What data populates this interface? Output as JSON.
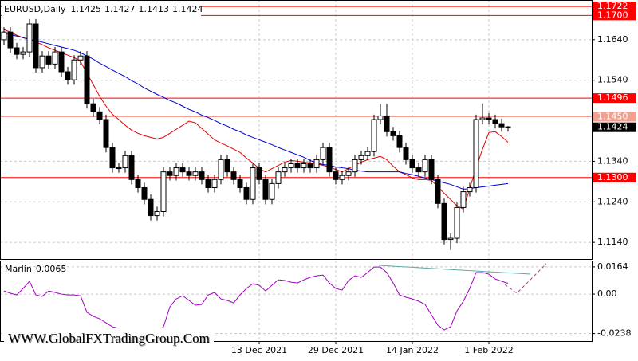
{
  "watermark": "WWW.GlobalFXTradingGroup.Com",
  "chart_data": [
    {
      "type": "candlestick",
      "title": "EURUSD,Daily",
      "categories": [
        null,
        null,
        null,
        null,
        null,
        null,
        null,
        null,
        null,
        null,
        null,
        null,
        null,
        null,
        null,
        null,
        null,
        null,
        null,
        null,
        null,
        null,
        null,
        null,
        null,
        null,
        null,
        null,
        null,
        null,
        null,
        null,
        null,
        null,
        null,
        null,
        null,
        null,
        null,
        null,
        "13 Dec 2021",
        null,
        null,
        null,
        null,
        null,
        null,
        null,
        null,
        null,
        null,
        null,
        "29 Dec 2021",
        null,
        null,
        null,
        null,
        null,
        null,
        null,
        null,
        null,
        null,
        null,
        "14 Jan 2022",
        null,
        null,
        null,
        null,
        null,
        null,
        null,
        null,
        null,
        null,
        null,
        "1 Feb 2022",
        null,
        null,
        null
      ],
      "open": [
        1.164,
        1.1659,
        1.162,
        1.1604,
        1.161,
        1.1679,
        1.1571,
        1.16,
        1.158,
        1.161,
        1.1561,
        1.1541,
        1.159,
        1.16,
        1.1482,
        1.1462,
        1.1443,
        1.1374,
        1.1324,
        1.1324,
        1.1354,
        1.1295,
        1.1275,
        1.1246,
        1.1206,
        1.1216,
        1.1314,
        1.1305,
        1.1324,
        1.1314,
        1.1305,
        1.1314,
        1.1295,
        1.1275,
        1.1295,
        1.1344,
        1.1314,
        1.1295,
        1.1275,
        1.1246,
        1.1324,
        1.1295,
        1.1246,
        1.1285,
        1.1314,
        1.1324,
        1.1334,
        1.1324,
        1.1334,
        1.1324,
        1.1344,
        1.1374,
        1.1314,
        1.1295,
        1.1305,
        1.1314,
        1.1344,
        1.1354,
        1.1364,
        1.1443,
        1.1452,
        1.1413,
        1.1403,
        1.1374,
        1.1344,
        1.1324,
        1.1314,
        1.1344,
        1.1295,
        1.1236,
        1.1147,
        1.115,
        1.1226,
        1.1265,
        1.1275,
        1.1443,
        1.1447,
        1.1443,
        1.1433,
        1.1425
      ],
      "high": [
        1.1671,
        1.1671,
        1.1632,
        1.1622,
        1.1691,
        1.1691,
        1.1612,
        1.1612,
        1.1622,
        1.1622,
        1.1573,
        1.1602,
        1.1612,
        1.1612,
        1.1494,
        1.1474,
        1.1455,
        1.1386,
        1.1336,
        1.1366,
        1.1366,
        1.1307,
        1.1287,
        1.1258,
        1.1228,
        1.1326,
        1.1326,
        1.1336,
        1.1336,
        1.1326,
        1.1326,
        1.1326,
        1.1307,
        1.1307,
        1.1356,
        1.1356,
        1.1326,
        1.1307,
        1.1287,
        1.1336,
        1.1336,
        1.1307,
        1.1297,
        1.1326,
        1.1336,
        1.1346,
        1.1346,
        1.1346,
        1.1346,
        1.1356,
        1.1386,
        1.1386,
        1.1326,
        1.1317,
        1.1326,
        1.1356,
        1.1366,
        1.1376,
        1.1455,
        1.1482,
        1.1482,
        1.1425,
        1.1415,
        1.1386,
        1.1356,
        1.1336,
        1.1356,
        1.1356,
        1.1307,
        1.1248,
        1.1162,
        1.1238,
        1.1277,
        1.1287,
        1.1455,
        1.1483,
        1.1459,
        1.1455,
        1.1445,
        1.1427
      ],
      "low": [
        1.1628,
        1.1608,
        1.1592,
        1.1592,
        1.1598,
        1.1559,
        1.1559,
        1.1568,
        1.1568,
        1.1549,
        1.1529,
        1.1529,
        1.1578,
        1.147,
        1.145,
        1.1431,
        1.1362,
        1.1312,
        1.1312,
        1.1312,
        1.1283,
        1.1263,
        1.1234,
        1.1194,
        1.1194,
        1.1204,
        1.1293,
        1.1293,
        1.1302,
        1.1293,
        1.1293,
        1.1283,
        1.1263,
        1.1263,
        1.1283,
        1.1302,
        1.1283,
        1.1263,
        1.1234,
        1.1234,
        1.1283,
        1.1234,
        1.1234,
        1.1273,
        1.1302,
        1.1312,
        1.1312,
        1.1312,
        1.1312,
        1.1312,
        1.1332,
        1.1302,
        1.1283,
        1.1283,
        1.1293,
        1.1302,
        1.1332,
        1.1342,
        1.1352,
        1.1431,
        1.1401,
        1.1391,
        1.1362,
        1.1332,
        1.1312,
        1.1302,
        1.1302,
        1.1283,
        1.1224,
        1.1135,
        1.1121,
        1.1138,
        1.1214,
        1.1253,
        1.1263,
        1.1431,
        1.1431,
        1.1421,
        1.1413,
        1.1413
      ],
      "close": [
        1.1659,
        1.162,
        1.1604,
        1.161,
        1.1679,
        1.1571,
        1.16,
        1.158,
        1.161,
        1.1561,
        1.1541,
        1.159,
        1.16,
        1.1482,
        1.1462,
        1.1443,
        1.1374,
        1.1324,
        1.1324,
        1.1354,
        1.1295,
        1.1275,
        1.1246,
        1.1206,
        1.1216,
        1.1314,
        1.1305,
        1.1324,
        1.1314,
        1.1305,
        1.1314,
        1.1295,
        1.1275,
        1.1295,
        1.1344,
        1.1314,
        1.1295,
        1.1275,
        1.1246,
        1.1324,
        1.1295,
        1.1246,
        1.1285,
        1.1314,
        1.1324,
        1.1334,
        1.1324,
        1.1334,
        1.1324,
        1.1344,
        1.1374,
        1.1314,
        1.1295,
        1.1305,
        1.1314,
        1.1344,
        1.1354,
        1.1364,
        1.1443,
        1.1452,
        1.1413,
        1.1403,
        1.1374,
        1.1344,
        1.1324,
        1.1314,
        1.1344,
        1.1295,
        1.1236,
        1.1147,
        1.115,
        1.1226,
        1.1265,
        1.1275,
        1.1443,
        1.1447,
        1.1443,
        1.1433,
        1.1425,
        1.1424
      ],
      "up_color": "#ffffff",
      "down_color": "#000000",
      "outline_color": "#000000",
      "lines": [
        {
          "color": "#e00000",
          "values": [
            1.1665,
            1.1659,
            1.1651,
            1.1645,
            1.164,
            1.1634,
            1.1628,
            1.162,
            1.1614,
            1.1608,
            1.1602,
            1.1596,
            1.1586,
            1.1557,
            1.1529,
            1.15,
            1.1476,
            1.1456,
            1.1443,
            1.1429,
            1.1417,
            1.1409,
            1.1403,
            1.1399,
            1.1395,
            1.1399,
            1.1409,
            1.1419,
            1.1429,
            1.1439,
            1.1435,
            1.1421,
            1.1407,
            1.1393,
            1.1385,
            1.1378,
            1.137,
            1.1362,
            1.1348,
            1.1336,
            1.1322,
            1.1314,
            1.1322,
            1.133,
            1.1338,
            1.1342,
            1.134,
            1.1338,
            1.1336,
            1.1334,
            1.133,
            1.1326,
            1.132,
            1.1314,
            1.1322,
            1.133,
            1.1338,
            1.1344,
            1.1348,
            1.1352,
            1.1344,
            1.1328,
            1.1314,
            1.1307,
            1.1299,
            1.1295,
            1.1295,
            1.1293,
            1.1277,
            1.1261,
            1.1246,
            1.123,
            1.1222,
            1.1273,
            1.1324,
            1.137,
            1.1411,
            1.1413,
            1.1401,
            1.1387
          ]
        },
        {
          "color": "#0000d0",
          "values": [
            1.1657,
            1.1653,
            1.1649,
            1.1645,
            1.1641,
            1.1638,
            1.1634,
            1.163,
            1.1626,
            1.1622,
            1.1618,
            1.1614,
            1.1608,
            1.16,
            1.1592,
            1.1582,
            1.1574,
            1.1565,
            1.1557,
            1.1549,
            1.1539,
            1.1531,
            1.1521,
            1.1513,
            1.1505,
            1.1498,
            1.149,
            1.1484,
            1.1476,
            1.1468,
            1.1462,
            1.1454,
            1.1448,
            1.1441,
            1.1433,
            1.1427,
            1.1419,
            1.1413,
            1.1405,
            1.1399,
            1.1393,
            1.1387,
            1.1381,
            1.1374,
            1.1368,
            1.1362,
            1.1356,
            1.135,
            1.1342,
            1.1336,
            1.1332,
            1.133,
            1.1326,
            1.1324,
            1.1322,
            1.1318,
            1.1316,
            1.1314,
            1.1314,
            1.1314,
            1.1314,
            1.1314,
            1.1314,
            1.131,
            1.1307,
            1.1303,
            1.1299,
            1.1295,
            1.1291,
            1.1287,
            1.1283,
            1.1277,
            1.1271,
            1.1273,
            1.1275,
            1.1277,
            1.1279,
            1.1281,
            1.1283,
            1.1285
          ]
        }
      ],
      "levels": [
        {
          "value": 1.1722,
          "color": "#ff0000"
        },
        {
          "value": 1.17,
          "label": "1.1700",
          "color": "#ff0000"
        },
        {
          "value": 1.1496,
          "color": "#ff0000"
        },
        {
          "value": 1.145,
          "label": "1.1450",
          "color": "#f4a090"
        },
        {
          "value": 1.13,
          "label": "1.1300",
          "color": "#ff0000"
        }
      ],
      "price_label_color": "#000000",
      "ylim": [
        1.1099,
        1.1738
      ],
      "yticks": [
        {
          "value": 1.164,
          "label": "1.1640"
        },
        {
          "value": 1.154,
          "label": "1.1540"
        },
        {
          "value": 1.134,
          "label": "1.1340"
        },
        {
          "value": 1.124,
          "label": "1.1240"
        },
        {
          "value": 1.114,
          "label": "1.1140"
        }
      ],
      "grid": true
    },
    {
      "type": "line",
      "title": "Marlin",
      "color": "#a000c0",
      "values": [
        0.0019,
        0.0005,
        -0.0005,
        0.0034,
        0.0077,
        -0.0005,
        -0.0014,
        0.0019,
        0.001,
        0,
        -0.0005,
        -0.0005,
        -0.001,
        -0.011,
        -0.0134,
        -0.0149,
        -0.0173,
        -0.0197,
        -0.0206,
        -0.0216,
        -0.0226,
        -0.023,
        -0.0235,
        -0.0245,
        -0.0226,
        -0.0197,
        -0.0077,
        -0.0029,
        -0.001,
        -0.0038,
        -0.0067,
        -0.0062,
        -0.0005,
        0.001,
        -0.0029,
        -0.0038,
        -0.0053,
        -0.0005,
        0.0034,
        0.0062,
        0.0053,
        0.0019,
        0.0053,
        0.0086,
        0.0082,
        0.0072,
        0.0067,
        0.0086,
        0.0101,
        0.011,
        0.0115,
        0.0067,
        0.0034,
        0.0024,
        0.0082,
        0.011,
        0.0101,
        0.013,
        0.0163,
        0.0163,
        0.013,
        0.0067,
        -0.0005,
        -0.0019,
        -0.0029,
        -0.0043,
        -0.0062,
        -0.0125,
        -0.0187,
        -0.0216,
        -0.0197,
        -0.0101,
        -0.0043,
        0.0034,
        0.013,
        0.013,
        0.012,
        0.0091,
        0.0077,
        0.0065
      ],
      "ylim": [
        -0.0283,
        0.0202
      ],
      "yticks": [
        0.0164,
        {
          "value": 0,
          "label": "0.00"
        },
        -0.0238
      ],
      "grid": true
    }
  ]
}
